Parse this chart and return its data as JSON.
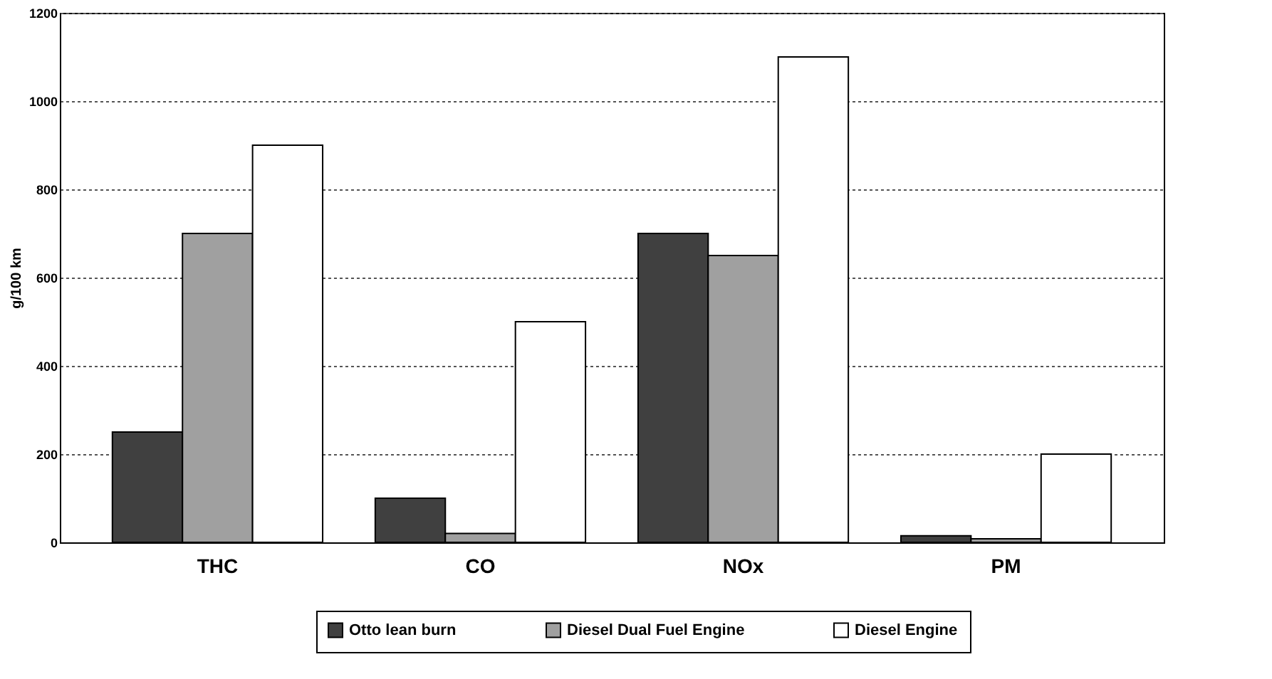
{
  "chart_data": {
    "type": "bar",
    "ylabel": "g/100 km",
    "categories": [
      "THC",
      "CO",
      "NOx",
      "PM"
    ],
    "series": [
      {
        "name": "Otto lean burn",
        "color": "#404040",
        "values": [
          250,
          100,
          700,
          15
        ]
      },
      {
        "name": "Diesel Dual Fuel Engine",
        "color": "#a0a0a0",
        "values": [
          700,
          20,
          650,
          8
        ]
      },
      {
        "name": "Diesel Engine",
        "color": "#ffffff",
        "values": [
          900,
          500,
          1100,
          200
        ]
      }
    ],
    "ylim": [
      0,
      1200
    ],
    "yticks": [
      0,
      200,
      400,
      600,
      800,
      1000,
      1200
    ],
    "grid": "y",
    "legend": "bottom"
  }
}
